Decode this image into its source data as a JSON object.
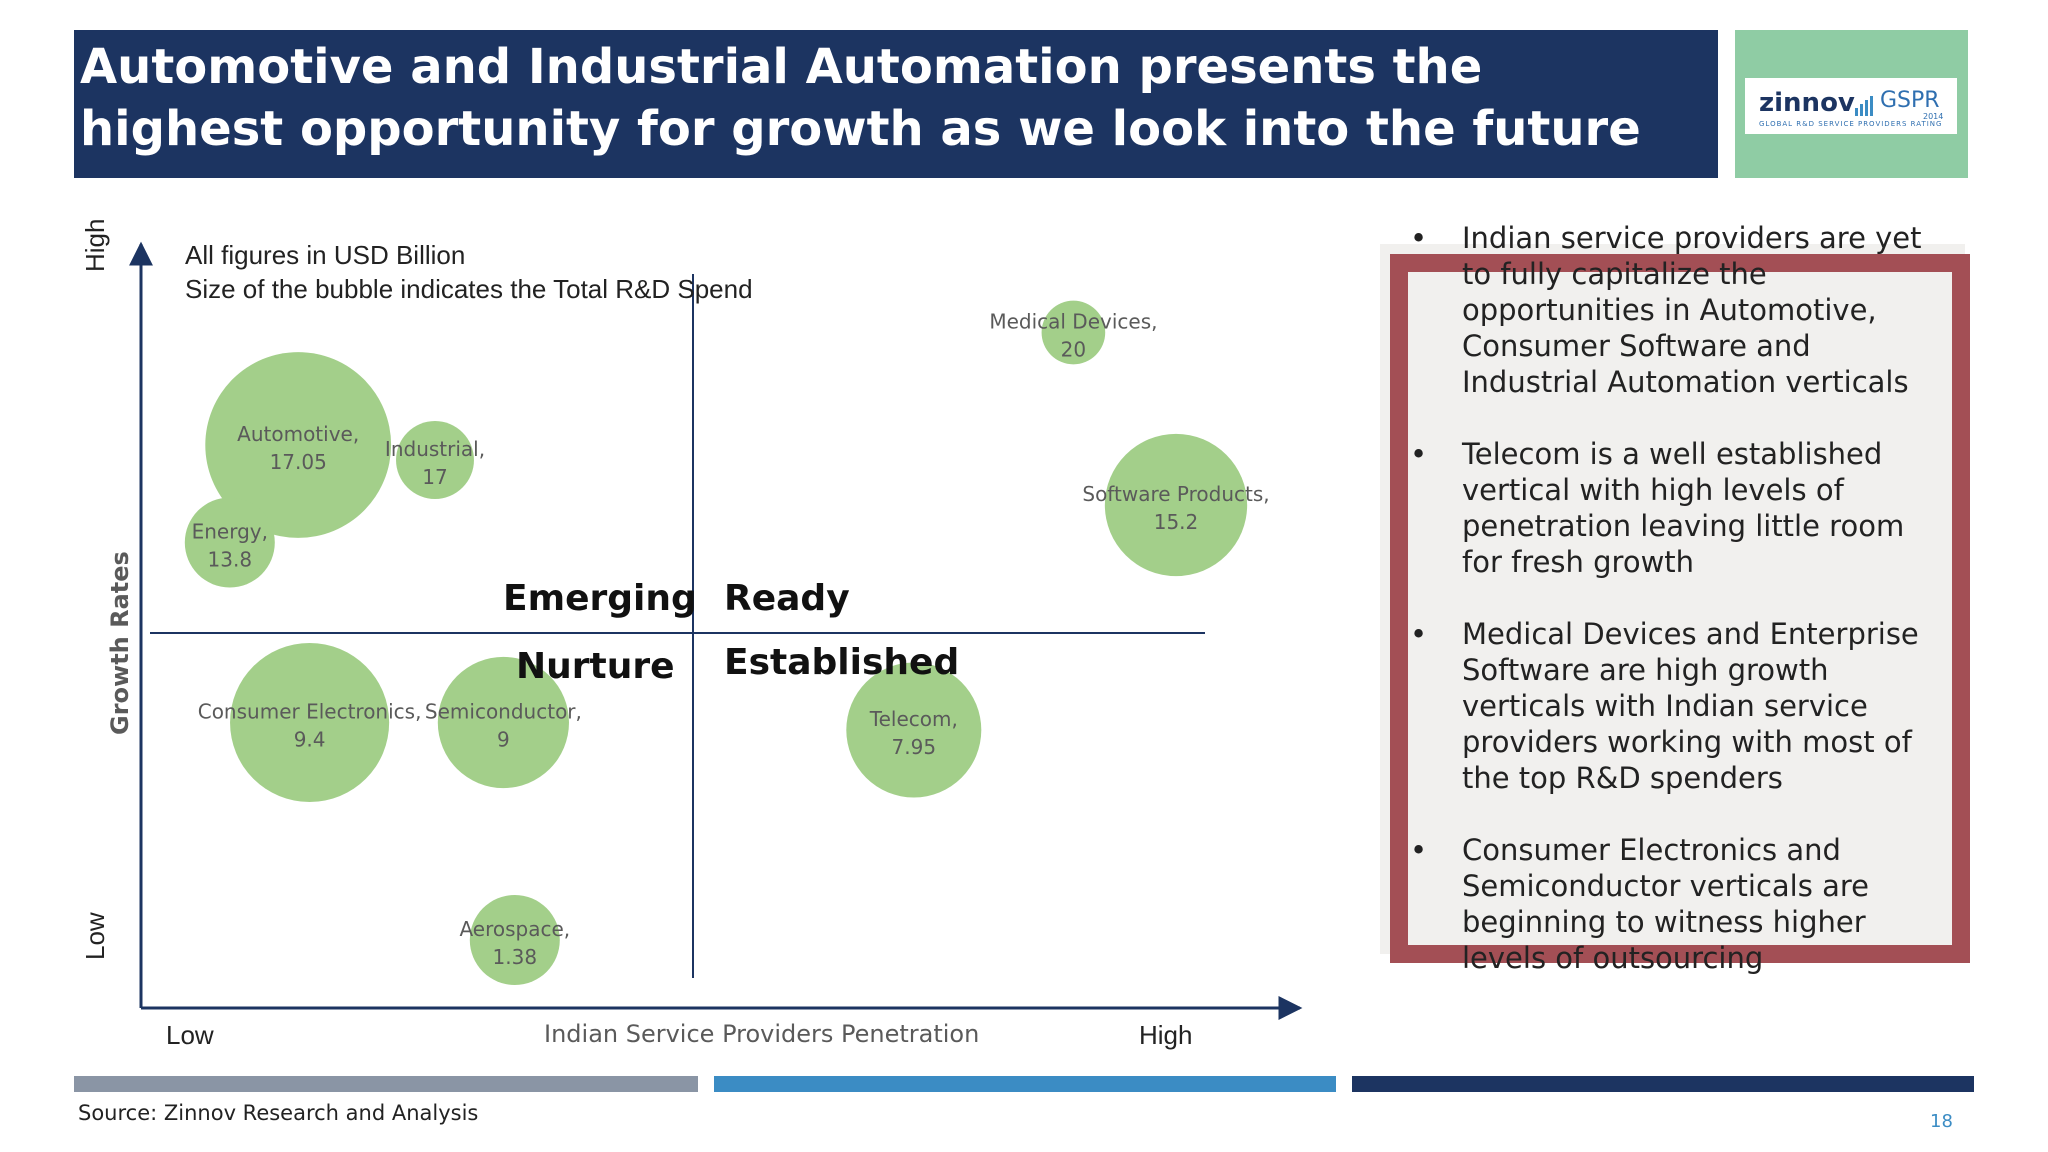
{
  "title": "Automotive and Industrial Automation presents the highest opportunity for growth as we look into the future",
  "logo": {
    "brand": "zinnov",
    "product": "GSPR",
    "year": "2014",
    "tagline": "GLOBAL R&D SERVICE PROVIDERS RATING"
  },
  "colors": {
    "title_bg": "#1c3461",
    "bubble": "#a3cf8a",
    "frame": "#a34f55",
    "panel_bg": "#f1f0ee",
    "stripe_gray": "#8a95a5",
    "stripe_blue": "#3b8cc4",
    "stripe_navy": "#1c3461"
  },
  "chart_data": {
    "type": "bubble",
    "note_line1": "All figures in USD Billion",
    "note_line2": "Size of the bubble indicates the Total R&D Spend",
    "xlabel": "Indian Service Providers Penetration",
    "ylabel": "Growth Rates",
    "x_low": "Low",
    "x_high": "High",
    "y_low": "Low",
    "y_high": "High",
    "xlim": [
      0,
      100
    ],
    "ylim": [
      0,
      100
    ],
    "quadrants": {
      "top_left": "Emerging",
      "top_right": "Ready",
      "bottom_left": "Nurture",
      "bottom_right": "Established"
    },
    "points": [
      {
        "name": "Automotive,",
        "value": "17.05",
        "x": 13,
        "y": 74,
        "size": 17.05
      },
      {
        "name": "Industrial,",
        "value": "17",
        "x": 25,
        "y": 72,
        "size": 3
      },
      {
        "name": "Energy,",
        "value": "13.8",
        "x": 7,
        "y": 61,
        "size": 4
      },
      {
        "name": "Medical Devices,",
        "value": "20",
        "x": 81,
        "y": 89,
        "size": 2
      },
      {
        "name": "Software Products,",
        "value": "15.2",
        "x": 90,
        "y": 66,
        "size": 10
      },
      {
        "name": "Consumer Electronics,",
        "value": "9.4",
        "x": 14,
        "y": 37,
        "size": 12.5
      },
      {
        "name": "Semiconductor,",
        "value": "9",
        "x": 31,
        "y": 37,
        "size": 8.5
      },
      {
        "name": "Telecom,",
        "value": "7.95",
        "x": 67,
        "y": 36,
        "size": 9
      },
      {
        "name": "Aerospace,",
        "value": "1.38",
        "x": 32,
        "y": 8,
        "size": 4
      }
    ]
  },
  "bullets": [
    "Indian service providers are yet to fully capitalize the opportunities in Automotive, Consumer Software and Industrial Automation verticals",
    "Telecom is a well established vertical with high levels of penetration leaving little room for fresh growth",
    "Medical Devices and Enterprise Software are high growth verticals with Indian service providers working with most of the top R&D spenders",
    "Consumer Electronics and Semiconductor verticals are beginning to witness higher levels of outsourcing"
  ],
  "bullet_symbol": "•",
  "source": "Source: Zinnov Research and Analysis",
  "page_number": "18"
}
